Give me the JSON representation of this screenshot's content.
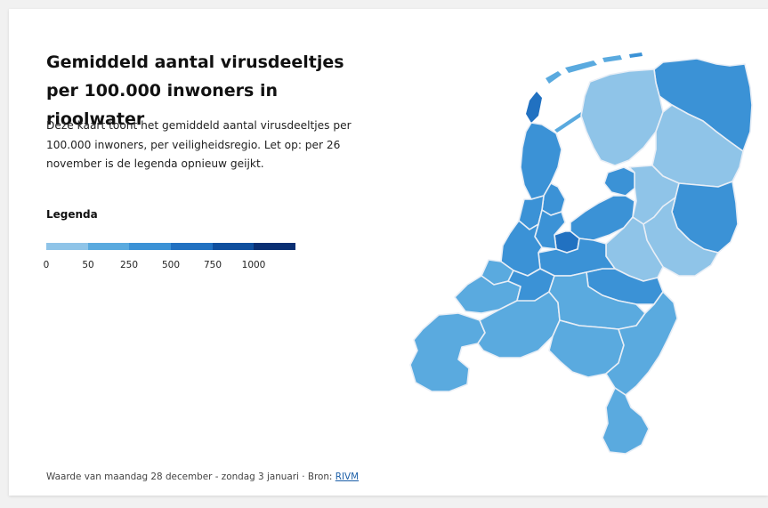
{
  "title": "Gemiddeld aantal virusdeeltjes per 100.000 inwoners in rioolwater",
  "description": "Deze kaart toont het gemiddeld aantal virusdeeltjes per 100.000 inwoners, per veiligheidsregio. Let op: per 26 november is de legenda opnieuw geijkt.",
  "legend": {
    "title": "Legenda",
    "ticks": [
      "0",
      "50",
      "250",
      "500",
      "750",
      "1000"
    ],
    "colors": [
      "#8fc4e8",
      "#5aaadf",
      "#3b92d6",
      "#2171c1",
      "#0f4f9e",
      "#0a2f73"
    ]
  },
  "footer": {
    "text": "Waarde van maandag 28 december - zondag 3 januari · Bron: ",
    "source_label": "RIVM"
  },
  "regions": [
    {
      "name": "Groningen",
      "level": 2
    },
    {
      "name": "Friesland",
      "level": 0
    },
    {
      "name": "Drenthe",
      "level": 0
    },
    {
      "name": "IJsselland",
      "level": 0
    },
    {
      "name": "Twente",
      "level": 2
    },
    {
      "name": "Noord- en Oost-Gelderland",
      "level": 0
    },
    {
      "name": "Gelderland-Midden",
      "level": 0
    },
    {
      "name": "Gelderland-Zuid",
      "level": 2
    },
    {
      "name": "Flevoland",
      "level": 2
    },
    {
      "name": "Gooi en Vechtstreek",
      "level": 3
    },
    {
      "name": "Utrecht",
      "level": 2
    },
    {
      "name": "Noord-Holland-Noord",
      "level": 2
    },
    {
      "name": "Zaanstreek-Waterland",
      "level": 2
    },
    {
      "name": "Kennemerland",
      "level": 2
    },
    {
      "name": "Amsterdam-Amstelland",
      "level": 2
    },
    {
      "name": "Hollands Midden",
      "level": 2
    },
    {
      "name": "Haaglanden",
      "level": 1
    },
    {
      "name": "Rotterdam-Rijnmond",
      "level": 1
    },
    {
      "name": "Zuid-Holland-Zuid",
      "level": 2
    },
    {
      "name": "Zeeland",
      "level": 1
    },
    {
      "name": "Midden- en West-Brabant",
      "level": 1
    },
    {
      "name": "Brabant-Noord",
      "level": 1
    },
    {
      "name": "Brabant-Zuidoost",
      "level": 1
    },
    {
      "name": "Limburg-Noord",
      "level": 1
    },
    {
      "name": "Limburg-Zuid",
      "level": 1
    },
    {
      "name": "Noordoostpolder",
      "level": 2
    }
  ]
}
